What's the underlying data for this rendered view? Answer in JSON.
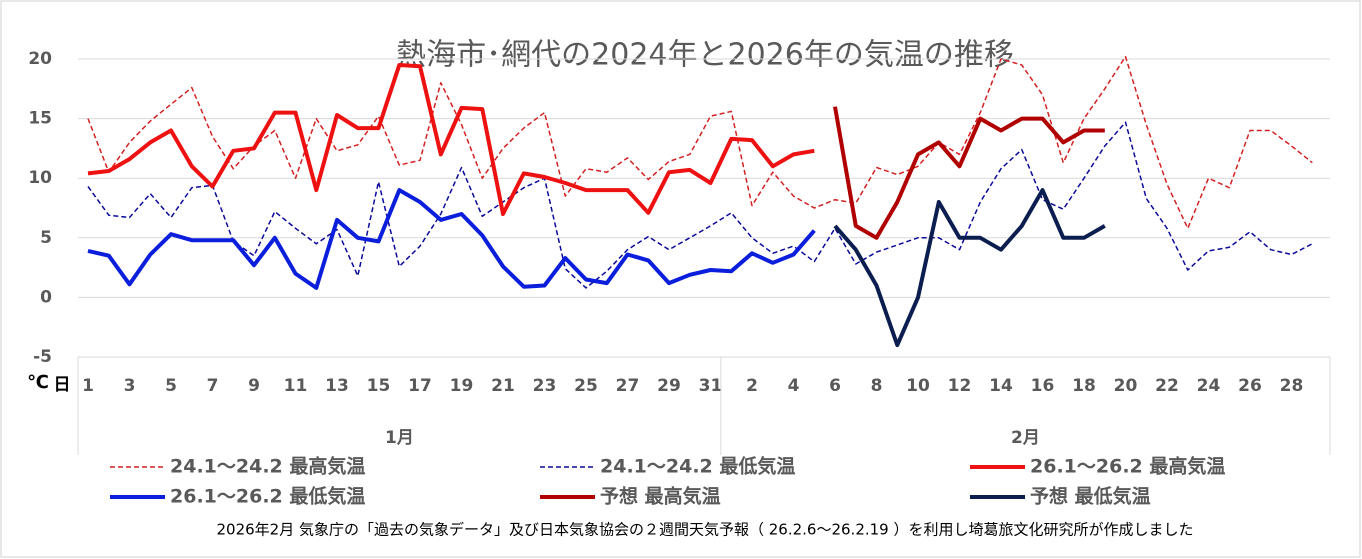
{
  "chart_data": {
    "type": "line",
    "title": "熱海市･網代の2024年と2026年の気温の推移",
    "y_unit": "℃",
    "x_unit": "日",
    "months": [
      {
        "label": "1月",
        "days": [
          "1",
          null,
          "3",
          null,
          "5",
          null,
          "7",
          null,
          "9",
          null,
          "11",
          null,
          "13",
          null,
          "15",
          null,
          "17",
          null,
          "19",
          null,
          "21",
          null,
          "23",
          null,
          "25",
          null,
          "27",
          null,
          "29",
          null,
          "31"
        ]
      },
      {
        "label": "2月",
        "days": [
          null,
          "2",
          null,
          "4",
          null,
          "6",
          null,
          "8",
          null,
          "10",
          null,
          "12",
          null,
          "14",
          null,
          "16",
          null,
          "18",
          null,
          "20",
          null,
          "22",
          null,
          "24",
          null,
          "26",
          null,
          "28",
          null
        ]
      }
    ],
    "ylim": [
      -5,
      20
    ],
    "yticks": [
      -5,
      0,
      5,
      10,
      15,
      20
    ],
    "grid": true,
    "series": [
      {
        "name": "24.1～24.2 最高気温",
        "color": "#d42020",
        "dashed": true,
        "values": [
          15,
          10.5,
          13,
          14.8,
          16.2,
          17.6,
          13.5,
          10.8,
          12.7,
          14,
          10,
          15,
          12.3,
          12.8,
          15.2,
          11.1,
          11.5,
          18,
          14.5,
          10,
          12.5,
          14.2,
          15.5,
          8.5,
          10.8,
          10.5,
          11.7,
          9.9,
          11.4,
          12,
          15.2,
          15.6,
          7.7,
          10.5,
          8.5,
          7.5,
          8.2,
          7.9,
          10.9,
          10.3,
          11,
          13,
          12,
          15.5,
          20,
          19.5,
          17,
          11.3,
          15,
          17.5,
          20.2,
          14.5,
          9.5,
          5.8,
          10,
          9.2,
          14,
          14,
          12.7,
          11.3
        ]
      },
      {
        "name": "24.1～24.2 最低気温",
        "color": "#0a0a9c",
        "dashed": true,
        "values": [
          9.3,
          6.9,
          6.7,
          8.7,
          6.7,
          9.2,
          9.4,
          4.7,
          3.5,
          7.2,
          5.8,
          4.5,
          5.7,
          1.8,
          9.7,
          2.6,
          4.3,
          7,
          10.9,
          6.8,
          8,
          9.2,
          10,
          2.4,
          0.8,
          2.2,
          4,
          5.1,
          4,
          5,
          6,
          7.1,
          5,
          3.7,
          4.3,
          3,
          5.8,
          2.8,
          3.8,
          4.4,
          5,
          5,
          4,
          8,
          10.8,
          12.4,
          8.2,
          7.4,
          10,
          12.7,
          14.7,
          8.3,
          5.8,
          2.3,
          3.9,
          4.2,
          5.5,
          4,
          3.6,
          4.5
        ]
      },
      {
        "name": "26.1～26.2 最高気温",
        "color": "#ee1111",
        "dashed": false,
        "values": [
          10.4,
          10.6,
          11.6,
          13,
          14,
          11,
          9.3,
          12.3,
          12.5,
          15.5,
          15.5,
          9,
          15.3,
          14.2,
          14.2,
          19.5,
          19.4,
          12,
          15.9,
          15.8,
          7,
          10.4,
          10.1,
          9.6,
          9,
          9,
          9,
          7.1,
          10.5,
          10.7,
          9.6,
          13.3,
          13.2,
          11,
          12,
          12.3,
          null,
          null,
          null,
          null,
          null,
          null,
          null,
          null,
          null,
          null,
          null,
          null,
          null,
          null,
          null,
          null,
          null,
          null,
          null,
          null,
          null,
          null,
          null,
          null
        ]
      },
      {
        "name": "26.1～26.2 最低気温",
        "color": "#0a1edc",
        "dashed": false,
        "values": [
          3.9,
          3.5,
          1.1,
          3.6,
          5.3,
          4.8,
          4.8,
          4.8,
          2.7,
          5,
          2,
          0.8,
          6.5,
          5,
          4.7,
          9,
          8,
          6.5,
          7,
          5.2,
          2.6,
          0.9,
          1,
          3.3,
          1.5,
          1.2,
          3.6,
          3.1,
          1.2,
          1.9,
          2.3,
          2.2,
          3.7,
          2.9,
          3.6,
          5.6,
          null,
          null,
          null,
          null,
          null,
          null,
          null,
          null,
          null,
          null,
          null,
          null,
          null,
          null,
          null,
          null,
          null,
          null,
          null,
          null,
          null,
          null,
          null,
          null
        ]
      },
      {
        "name": "予想 最高気温",
        "color": "#b00000",
        "dashed": false,
        "values": [
          null,
          null,
          null,
          null,
          null,
          null,
          null,
          null,
          null,
          null,
          null,
          null,
          null,
          null,
          null,
          null,
          null,
          null,
          null,
          null,
          null,
          null,
          null,
          null,
          null,
          null,
          null,
          null,
          null,
          null,
          null,
          null,
          null,
          null,
          null,
          null,
          16,
          6,
          5,
          8,
          12,
          13,
          11,
          15,
          14,
          15,
          15,
          13,
          14,
          14,
          null,
          null,
          null,
          null,
          null,
          null,
          null,
          null,
          null,
          null
        ]
      },
      {
        "name": "予想 最低気温",
        "color": "#0c1e50",
        "dashed": false,
        "values": [
          null,
          null,
          null,
          null,
          null,
          null,
          null,
          null,
          null,
          null,
          null,
          null,
          null,
          null,
          null,
          null,
          null,
          null,
          null,
          null,
          null,
          null,
          null,
          null,
          null,
          null,
          null,
          null,
          null,
          null,
          null,
          null,
          null,
          null,
          null,
          null,
          6,
          4,
          1,
          -4,
          0,
          8,
          5,
          5,
          4,
          6,
          9,
          5,
          5,
          6,
          null,
          null,
          null,
          null,
          null,
          null,
          null,
          null,
          null,
          null
        ]
      }
    ],
    "note": "2026年2月 気象庁の「過去の気象データ」及び日本気象協会の２週間天気予報（ 26.2.6～26.2.19 ）を利用し埼葛旅文化研究所が作成しました"
  }
}
